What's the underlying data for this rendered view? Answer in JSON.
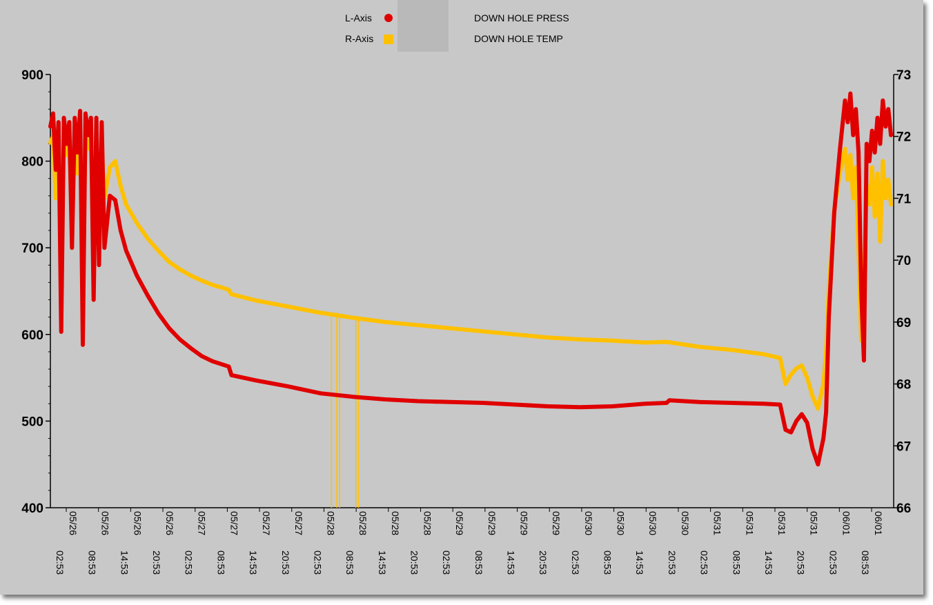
{
  "legend": {
    "left_axis_label": "L-Axis",
    "right_axis_label": "R-Axis",
    "left_series_name": "DOWN HOLE PRESS",
    "right_series_name": "DOWN HOLE TEMP"
  },
  "colors": {
    "press": "#e00000",
    "temp": "#ffc000",
    "background": "#c8c8c8",
    "redaction": "#b9b9b9"
  },
  "chart_data": {
    "type": "line",
    "title": "",
    "xlabel": "",
    "grid": false,
    "legend_position": "top-center",
    "x_ticks": [
      "05/26 02:53",
      "05/26 08:53",
      "05/26 14:53",
      "05/26 20:53",
      "05/27 02:53",
      "05/27 08:53",
      "05/27 14:53",
      "05/27 20:53",
      "05/28 02:53",
      "05/28 08:53",
      "05/28 14:53",
      "05/28 20:53",
      "05/29 02:53",
      "05/29 08:53",
      "05/29 14:53",
      "05/29 20:53",
      "05/30 02:53",
      "05/30 08:53",
      "05/30 14:53",
      "05/30 20:53",
      "05/31 02:53",
      "05/31 08:53",
      "05/31 14:53",
      "05/31 20:53",
      "06/01 02:53",
      "06/01 08:53"
    ],
    "x_range": [
      "05/26 00:00",
      "06/01 12:00"
    ],
    "y_left": {
      "label": "",
      "range": [
        400,
        900
      ],
      "ticks": [
        400,
        500,
        600,
        700,
        800,
        900
      ]
    },
    "y_right": {
      "label": "",
      "range": [
        66,
        73
      ],
      "ticks": [
        66,
        67,
        68,
        69,
        70,
        71,
        72,
        73
      ]
    },
    "series": [
      {
        "name": "DOWN HOLE PRESS",
        "axis": "left",
        "color": "#e00000",
        "points": [
          [
            "05/26 00:00",
            840
          ],
          [
            "05/26 00:30",
            855
          ],
          [
            "05/26 01:00",
            790
          ],
          [
            "05/26 01:30",
            845
          ],
          [
            "05/26 02:00",
            603
          ],
          [
            "05/26 02:30",
            850
          ],
          [
            "05/26 03:00",
            820
          ],
          [
            "05/26 03:30",
            845
          ],
          [
            "05/26 04:00",
            700
          ],
          [
            "05/26 04:30",
            850
          ],
          [
            "05/26 05:00",
            810
          ],
          [
            "05/26 05:30",
            858
          ],
          [
            "05/26 06:00",
            588
          ],
          [
            "05/26 06:30",
            855
          ],
          [
            "05/26 07:00",
            830
          ],
          [
            "05/26 07:30",
            850
          ],
          [
            "05/26 08:00",
            640
          ],
          [
            "05/26 08:30",
            850
          ],
          [
            "05/26 09:00",
            680
          ],
          [
            "05/26 09:30",
            845
          ],
          [
            "05/26 10:00",
            700
          ],
          [
            "05/26 11:00",
            760
          ],
          [
            "05/26 12:00",
            755
          ],
          [
            "05/26 13:00",
            720
          ],
          [
            "05/26 14:00",
            697
          ],
          [
            "05/26 16:00",
            668
          ],
          [
            "05/26 18:00",
            645
          ],
          [
            "05/26 20:00",
            624
          ],
          [
            "05/26 22:00",
            607
          ],
          [
            "05/27 00:00",
            594
          ],
          [
            "05/27 02:00",
            584
          ],
          [
            "05/27 04:00",
            575
          ],
          [
            "05/27 06:00",
            569
          ],
          [
            "05/27 08:00",
            565
          ],
          [
            "05/27 09:00",
            563
          ],
          [
            "05/27 09:30",
            553
          ],
          [
            "05/27 14:00",
            547
          ],
          [
            "05/27 20:00",
            540
          ],
          [
            "05/28 02:00",
            532
          ],
          [
            "05/28 08:00",
            528
          ],
          [
            "05/28 14:00",
            525
          ],
          [
            "05/28 20:00",
            523
          ],
          [
            "05/29 02:00",
            522
          ],
          [
            "05/29 08:00",
            521
          ],
          [
            "05/29 14:00",
            519
          ],
          [
            "05/29 20:00",
            517
          ],
          [
            "05/30 02:00",
            516
          ],
          [
            "05/30 08:00",
            517
          ],
          [
            "05/30 14:00",
            520
          ],
          [
            "05/30 18:00",
            521
          ],
          [
            "05/30 18:30",
            524
          ],
          [
            "05/31 00:00",
            522
          ],
          [
            "05/31 06:00",
            521
          ],
          [
            "05/31 12:00",
            520
          ],
          [
            "05/31 15:00",
            519
          ],
          [
            "05/31 16:00",
            490
          ],
          [
            "05/31 17:00",
            487
          ],
          [
            "05/31 18:00",
            500
          ],
          [
            "05/31 19:00",
            508
          ],
          [
            "05/31 20:00",
            498
          ],
          [
            "05/31 21:00",
            468
          ],
          [
            "05/31 22:00",
            450
          ],
          [
            "05/31 23:00",
            480
          ],
          [
            "05/31 23:30",
            510
          ],
          [
            "06/01 00:00",
            620
          ],
          [
            "06/01 01:00",
            740
          ],
          [
            "06/01 02:00",
            810
          ],
          [
            "06/01 02:30",
            840
          ],
          [
            "06/01 03:00",
            870
          ],
          [
            "06/01 03:30",
            845
          ],
          [
            "06/01 04:00",
            878
          ],
          [
            "06/01 04:30",
            830
          ],
          [
            "06/01 05:00",
            860
          ],
          [
            "06/01 05:30",
            810
          ],
          [
            "06/01 06:00",
            650
          ],
          [
            "06/01 06:30",
            570
          ],
          [
            "06/01 07:00",
            820
          ],
          [
            "06/01 07:30",
            800
          ],
          [
            "06/01 08:00",
            835
          ],
          [
            "06/01 08:30",
            810
          ],
          [
            "06/01 09:00",
            850
          ],
          [
            "06/01 09:30",
            820
          ],
          [
            "06/01 10:00",
            870
          ],
          [
            "06/01 10:30",
            840
          ],
          [
            "06/01 11:00",
            860
          ],
          [
            "06/01 11:30",
            830
          ]
        ]
      },
      {
        "name": "DOWN HOLE TEMP",
        "axis": "right",
        "color": "#ffc000",
        "points": [
          [
            "05/26 00:00",
            71.9
          ],
          [
            "05/26 00:30",
            72.0
          ],
          [
            "05/26 01:00",
            71.0
          ],
          [
            "05/26 01:30",
            71.9
          ],
          [
            "05/26 02:00",
            70.0
          ],
          [
            "05/26 02:30",
            71.9
          ],
          [
            "05/26 03:00",
            71.7
          ],
          [
            "05/26 03:30",
            72.0
          ],
          [
            "05/26 04:00",
            70.5
          ],
          [
            "05/26 04:30",
            72.0
          ],
          [
            "05/26 05:00",
            71.4
          ],
          [
            "05/26 05:30",
            72.1
          ],
          [
            "05/26 06:00",
            69.7
          ],
          [
            "05/26 06:30",
            72.0
          ],
          [
            "05/26 07:00",
            71.8
          ],
          [
            "05/26 07:30",
            72.0
          ],
          [
            "05/26 08:00",
            70.3
          ],
          [
            "05/26 08:30",
            72.0
          ],
          [
            "05/26 09:00",
            70.7
          ],
          [
            "05/26 09:30",
            71.9
          ],
          [
            "05/26 10:00",
            71.0
          ],
          [
            "05/26 11:00",
            71.5
          ],
          [
            "05/26 12:00",
            71.6
          ],
          [
            "05/26 13:00",
            71.2
          ],
          [
            "05/26 14:00",
            70.9
          ],
          [
            "05/26 16:00",
            70.6
          ],
          [
            "05/26 18:00",
            70.35
          ],
          [
            "05/26 20:00",
            70.15
          ],
          [
            "05/26 22:00",
            69.97
          ],
          [
            "05/27 00:00",
            69.85
          ],
          [
            "05/27 02:00",
            69.75
          ],
          [
            "05/27 04:00",
            69.67
          ],
          [
            "05/27 06:00",
            69.6
          ],
          [
            "05/27 08:00",
            69.55
          ],
          [
            "05/27 09:00",
            69.52
          ],
          [
            "05/27 09:30",
            69.45
          ],
          [
            "05/27 14:00",
            69.35
          ],
          [
            "05/27 20:00",
            69.25
          ],
          [
            "05/28 02:00",
            69.15
          ],
          [
            "05/28 08:00",
            69.07
          ],
          [
            "05/28 14:00",
            69.0
          ],
          [
            "05/28 20:00",
            68.95
          ],
          [
            "05/29 02:00",
            68.9
          ],
          [
            "05/29 08:00",
            68.85
          ],
          [
            "05/29 14:00",
            68.8
          ],
          [
            "05/29 20:00",
            68.75
          ],
          [
            "05/30 02:00",
            68.72
          ],
          [
            "05/30 08:00",
            68.7
          ],
          [
            "05/30 14:00",
            68.67
          ],
          [
            "05/30 18:00",
            68.68
          ],
          [
            "05/31 00:00",
            68.6
          ],
          [
            "05/31 06:00",
            68.55
          ],
          [
            "05/31 12:00",
            68.48
          ],
          [
            "05/31 15:00",
            68.42
          ],
          [
            "05/31 16:00",
            68.0
          ],
          [
            "05/31 17:00",
            68.15
          ],
          [
            "05/31 18:00",
            68.25
          ],
          [
            "05/31 19:00",
            68.3
          ],
          [
            "05/31 20:00",
            68.1
          ],
          [
            "05/31 21:00",
            67.8
          ],
          [
            "05/31 22:00",
            67.6
          ],
          [
            "05/31 23:00",
            68.0
          ],
          [
            "05/31 23:30",
            68.5
          ],
          [
            "06/01 00:00",
            69.5
          ],
          [
            "06/01 01:00",
            70.8
          ],
          [
            "06/01 02:00",
            71.4
          ],
          [
            "06/01 03:00",
            71.8
          ],
          [
            "06/01 03:30",
            71.3
          ],
          [
            "06/01 04:00",
            71.7
          ],
          [
            "06/01 04:30",
            71.0
          ],
          [
            "06/01 05:00",
            71.5
          ],
          [
            "06/01 05:30",
            70.2
          ],
          [
            "06/01 06:00",
            68.7
          ],
          [
            "06/01 06:30",
            69.5
          ],
          [
            "06/01 07:00",
            71.2
          ],
          [
            "06/01 07:30",
            70.9
          ],
          [
            "06/01 08:00",
            71.5
          ],
          [
            "06/01 08:30",
            70.7
          ],
          [
            "06/01 09:00",
            71.4
          ],
          [
            "06/01 09:30",
            70.3
          ],
          [
            "06/01 10:00",
            71.6
          ],
          [
            "06/01 10:30",
            71.0
          ],
          [
            "06/01 11:00",
            71.3
          ],
          [
            "06/01 11:30",
            70.9
          ]
        ],
        "spikes": [
          {
            "x": "05/28 04:00",
            "y": 66.0
          },
          {
            "x": "05/28 05:00",
            "y": 66.0
          },
          {
            "x": "05/28 05:30",
            "y": 66.0
          },
          {
            "x": "05/28 08:30",
            "y": 66.0
          },
          {
            "x": "05/28 09:00",
            "y": 66.0
          }
        ]
      }
    ]
  }
}
